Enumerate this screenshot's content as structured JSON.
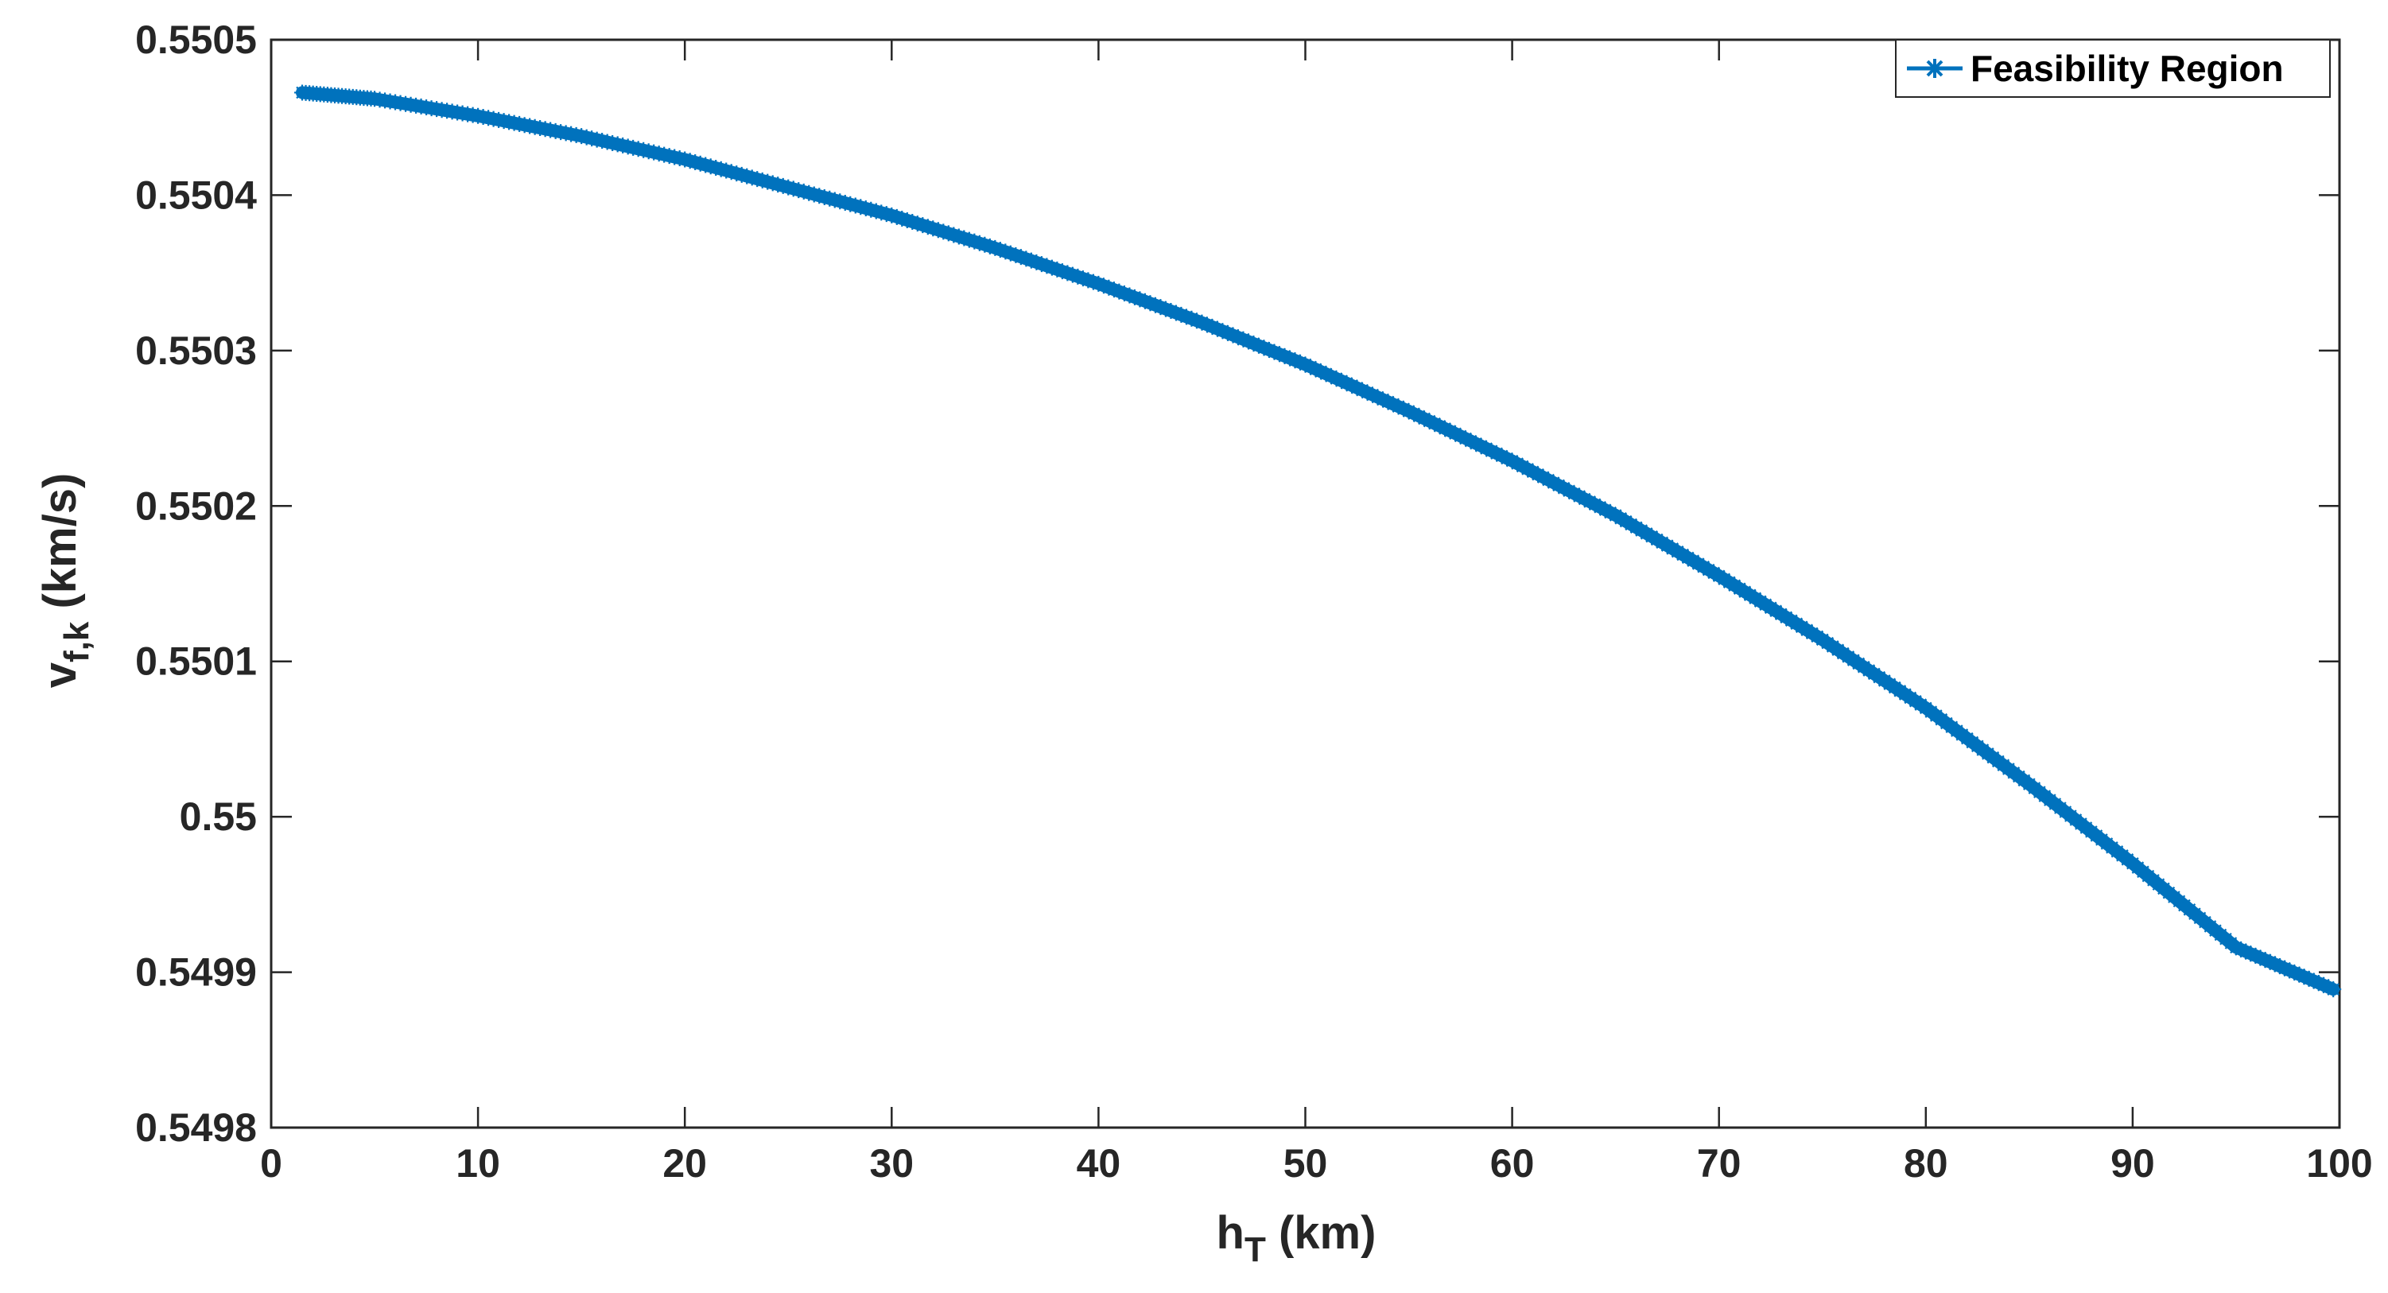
{
  "chart_data": {
    "type": "line",
    "title": "",
    "xlabel": {
      "main": "h",
      "sub": "T",
      "unit": " (km)"
    },
    "ylabel": {
      "main": "v",
      "sub": "f,k",
      "unit": " (km/s)"
    },
    "xlim": [
      0,
      100
    ],
    "ylim": [
      0.5498,
      0.5505
    ],
    "xticks": [
      0,
      10,
      20,
      30,
      40,
      50,
      60,
      70,
      80,
      90,
      100
    ],
    "xtick_labels": [
      "0",
      "10",
      "20",
      "30",
      "40",
      "50",
      "60",
      "70",
      "80",
      "90",
      "100"
    ],
    "yticks": [
      0.5498,
      0.5499,
      0.55,
      0.5501,
      0.5502,
      0.5503,
      0.5504,
      0.5505
    ],
    "ytick_labels": [
      "0.5498",
      "0.5499",
      "0.55",
      "0.5501",
      "0.5502",
      "0.5503",
      "0.5504",
      "0.5505"
    ],
    "grid": false,
    "legend_position": "top-right",
    "series": [
      {
        "name": "Feasibility Region",
        "color": "#0072BD",
        "marker": "asterisk",
        "x": [
          1.5,
          5,
          10,
          15,
          20,
          25,
          30,
          35,
          40,
          45,
          50,
          55,
          60,
          65,
          70,
          75,
          80,
          85,
          90,
          95,
          99.7
        ],
        "y": [
          0.550466,
          0.550462,
          0.550451,
          0.550438,
          0.550423,
          0.550405,
          0.550387,
          0.550366,
          0.550343,
          0.550318,
          0.550291,
          0.550261,
          0.550229,
          0.550194,
          0.550155,
          0.550114,
          0.55007,
          0.550021,
          0.54997,
          0.549916,
          0.549889
        ]
      }
    ]
  }
}
